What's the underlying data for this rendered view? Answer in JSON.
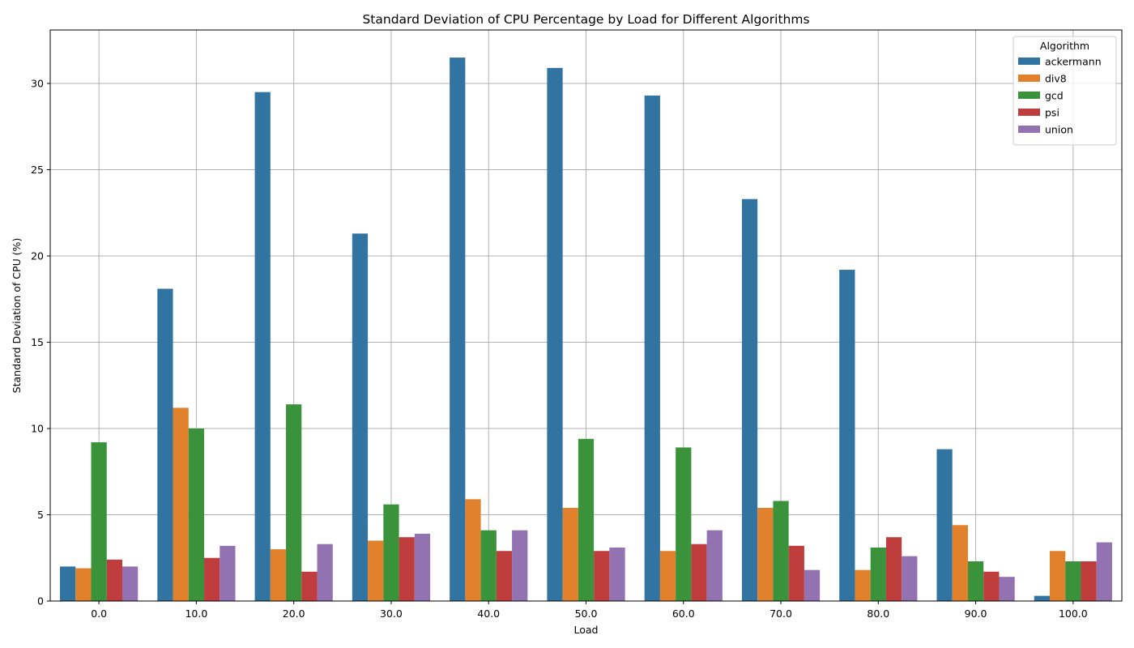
{
  "chart_data": {
    "type": "bar",
    "title": "Standard Deviation of CPU Percentage by Load for Different Algorithms",
    "xlabel": "Load",
    "ylabel": "Standard Deviation of CPU (%)",
    "categories": [
      "0.0",
      "10.0",
      "20.0",
      "30.0",
      "40.0",
      "50.0",
      "60.0",
      "70.0",
      "80.0",
      "90.0",
      "100.0"
    ],
    "yticks": [
      0,
      5,
      10,
      15,
      20,
      25,
      30
    ],
    "ylim": [
      0,
      33.1
    ],
    "grid": true,
    "legend": {
      "title": "Algorithm",
      "placement": "top-right"
    },
    "series": [
      {
        "name": "ackermann",
        "color": "#3274a1",
        "values": [
          2.0,
          18.1,
          29.5,
          21.3,
          31.5,
          30.9,
          29.3,
          23.3,
          19.2,
          8.8,
          0.3
        ]
      },
      {
        "name": "div8",
        "color": "#e1812c",
        "values": [
          1.9,
          11.2,
          3.0,
          3.5,
          5.9,
          5.4,
          2.9,
          5.4,
          1.8,
          4.4,
          2.9
        ]
      },
      {
        "name": "gcd",
        "color": "#3a923a",
        "values": [
          9.2,
          10.0,
          11.4,
          5.6,
          4.1,
          9.4,
          8.9,
          5.8,
          3.1,
          2.3,
          2.3
        ]
      },
      {
        "name": "psi",
        "color": "#c03d3e",
        "values": [
          2.4,
          2.5,
          1.7,
          3.7,
          2.9,
          2.9,
          3.3,
          3.2,
          3.7,
          1.7,
          2.3
        ]
      },
      {
        "name": "union",
        "color": "#9372b2",
        "values": [
          2.0,
          3.2,
          3.3,
          3.9,
          4.1,
          3.1,
          4.1,
          1.8,
          2.6,
          1.4,
          3.4
        ]
      }
    ]
  }
}
